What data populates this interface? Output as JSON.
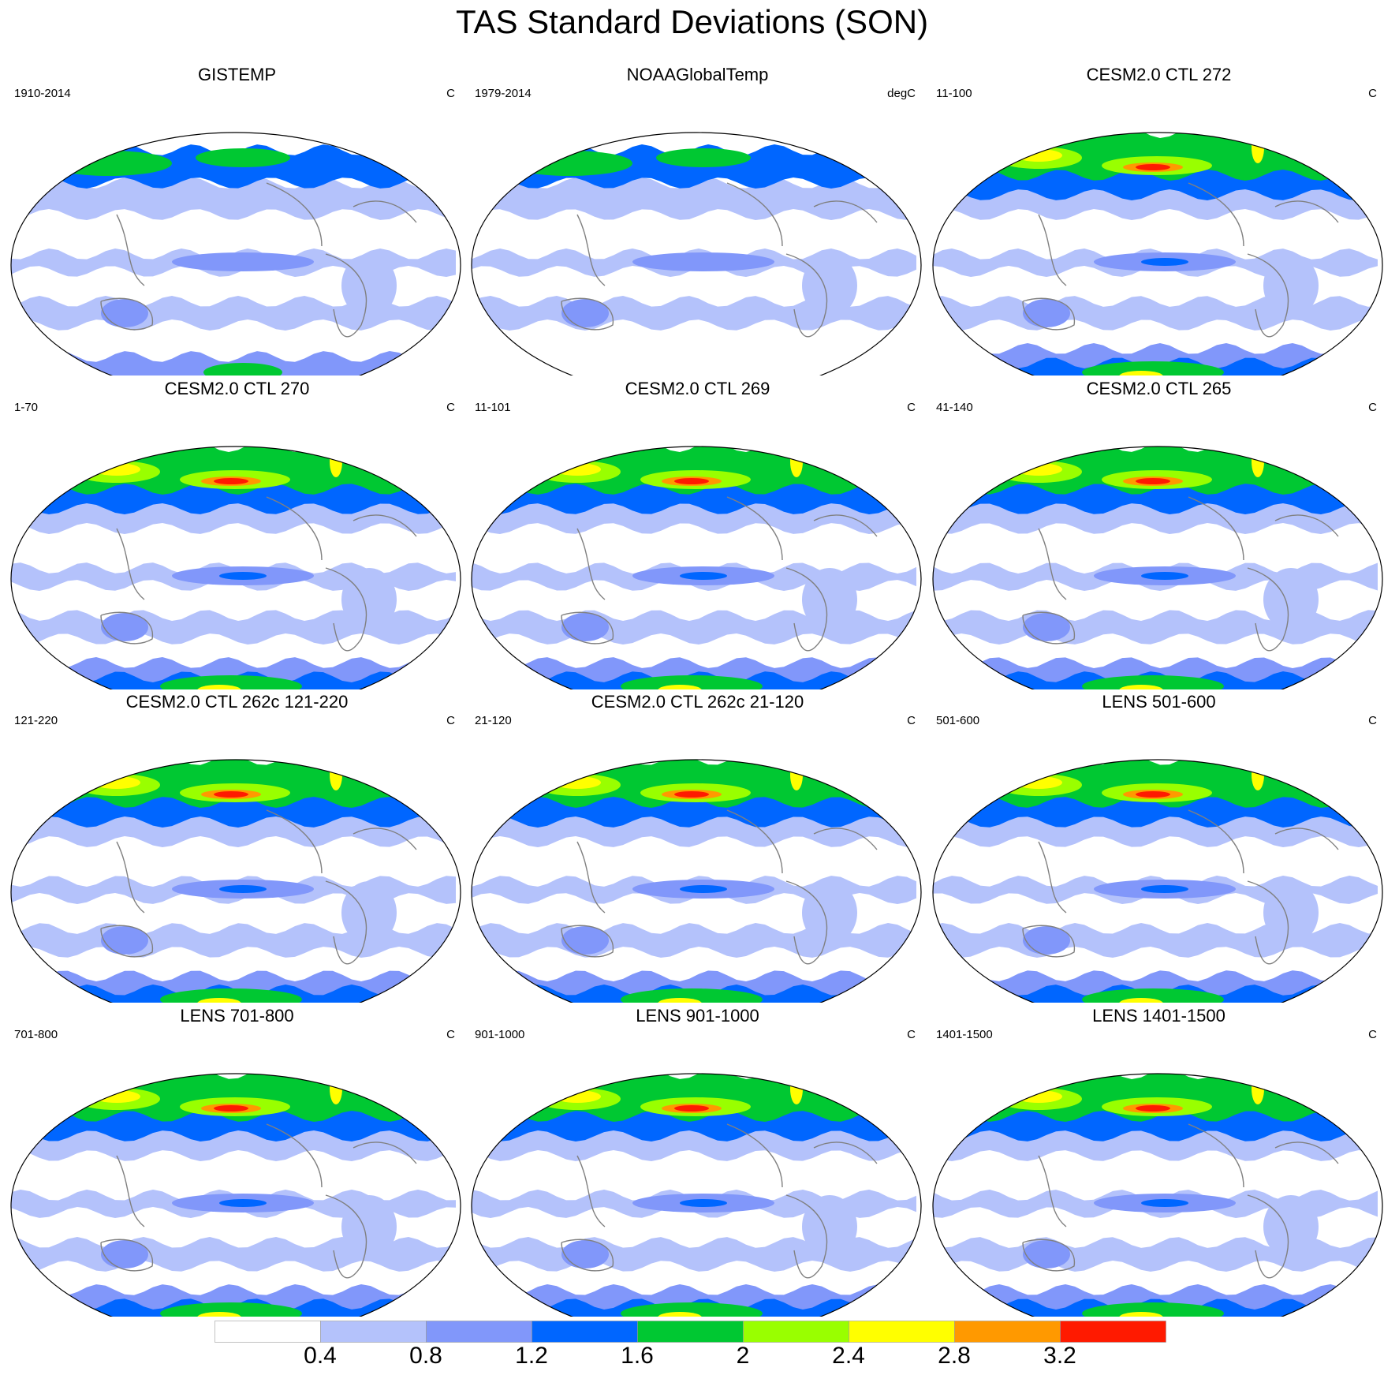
{
  "title": "TAS Standard Deviations (SON)",
  "colors": {
    "levels": [
      "#ffffff",
      "#b4c2fb",
      "#8197fa",
      "#0066ff",
      "#00c832",
      "#99ff00",
      "#ffff00",
      "#ff9900",
      "#ff1a00"
    ],
    "coast": "#808080",
    "outline": "#000000"
  },
  "colorbar": {
    "boundaries": [
      0.4,
      0.8,
      1.2,
      1.6,
      2,
      2.4,
      2.8,
      3.2
    ],
    "labels": [
      "0.4",
      "0.8",
      "1.2",
      "1.6",
      "2",
      "2.4",
      "2.8",
      "3.2"
    ]
  },
  "panels": [
    {
      "title": "GISTEMP",
      "period": "1910-2014",
      "units": "C",
      "max_level": 4
    },
    {
      "title": "NOAAGlobalTemp",
      "period": "1979-2014",
      "units": "degC",
      "max_level": 4
    },
    {
      "title": "CESM2.0 CTL 272",
      "period": "11-100",
      "units": "C",
      "max_level": 8
    },
    {
      "title": "CESM2.0 CTL 270",
      "period": "1-70",
      "units": "C",
      "max_level": 8
    },
    {
      "title": "CESM2.0 CTL 269",
      "period": "11-101",
      "units": "C",
      "max_level": 8
    },
    {
      "title": "CESM2.0 CTL 265",
      "period": "41-140",
      "units": "C",
      "max_level": 8
    },
    {
      "title": "CESM2.0 CTL 262c 121-220",
      "period": "121-220",
      "units": "C",
      "max_level": 8
    },
    {
      "title": "CESM2.0 CTL 262c 21-120",
      "period": "21-120",
      "units": "C",
      "max_level": 8
    },
    {
      "title": "LENS 501-600",
      "period": "501-600",
      "units": "C",
      "max_level": 8
    },
    {
      "title": "LENS 701-800",
      "period": "701-800",
      "units": "C",
      "max_level": 8
    },
    {
      "title": "LENS 901-1000",
      "period": "901-1000",
      "units": "C",
      "max_level": 8
    },
    {
      "title": "LENS 1401-1500",
      "period": "1401-1500",
      "units": "C",
      "max_level": 8
    }
  ]
}
